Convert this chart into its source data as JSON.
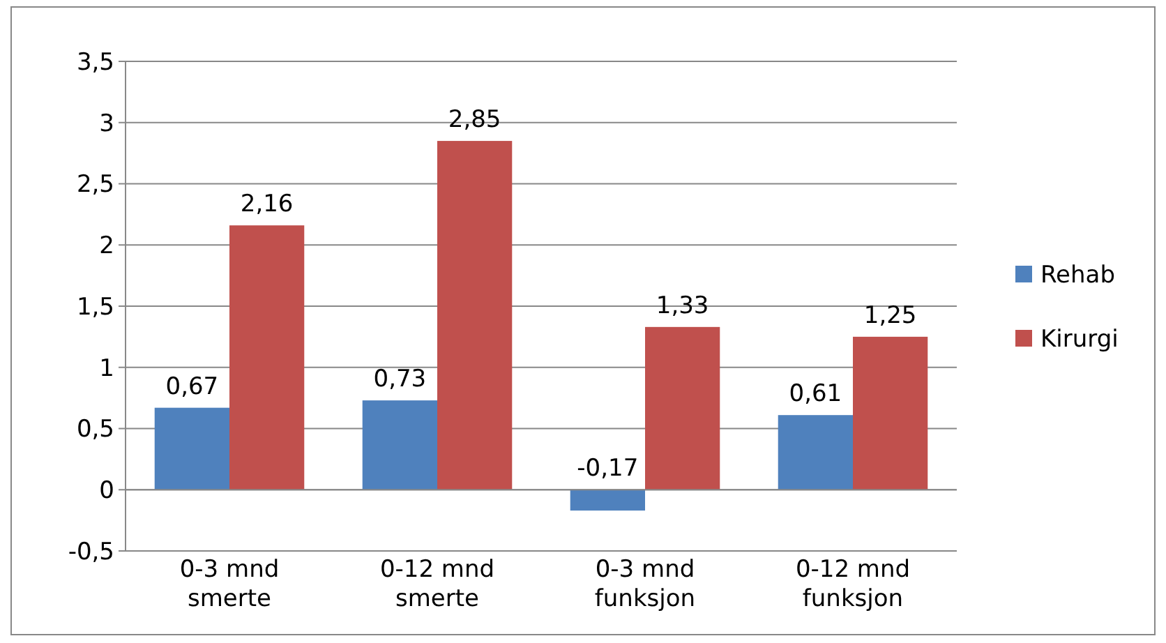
{
  "chart_data": {
    "type": "bar",
    "categories": [
      "0-3 mnd smerte",
      "0-12 mnd smerte",
      "0-3 mnd funksjon",
      "0-12 mnd funksjon"
    ],
    "series": [
      {
        "name": "Rehab",
        "color": "#4f81bd",
        "values": [
          0.67,
          0.73,
          -0.17,
          0.61
        ],
        "value_labels": [
          "0,67",
          "0,73",
          "-0,17",
          "0,61"
        ]
      },
      {
        "name": "Kirurgi",
        "color": "#c0504d",
        "values": [
          2.16,
          2.85,
          1.33,
          1.25
        ],
        "value_labels": [
          "2,16",
          "2,85",
          "1,33",
          "1,25"
        ]
      }
    ],
    "ylim": [
      -0.5,
      3.5
    ],
    "yticks": [
      {
        "value": -0.5,
        "label": "-0,5"
      },
      0,
      {
        "value": 0.5,
        "label": "0,5"
      },
      1,
      {
        "value": 1.5,
        "label": "1,5"
      },
      2,
      {
        "value": 2.5,
        "label": "2,5"
      },
      3,
      {
        "value": 3.5,
        "label": "3,5"
      }
    ],
    "grid": "y",
    "legend": "right"
  }
}
